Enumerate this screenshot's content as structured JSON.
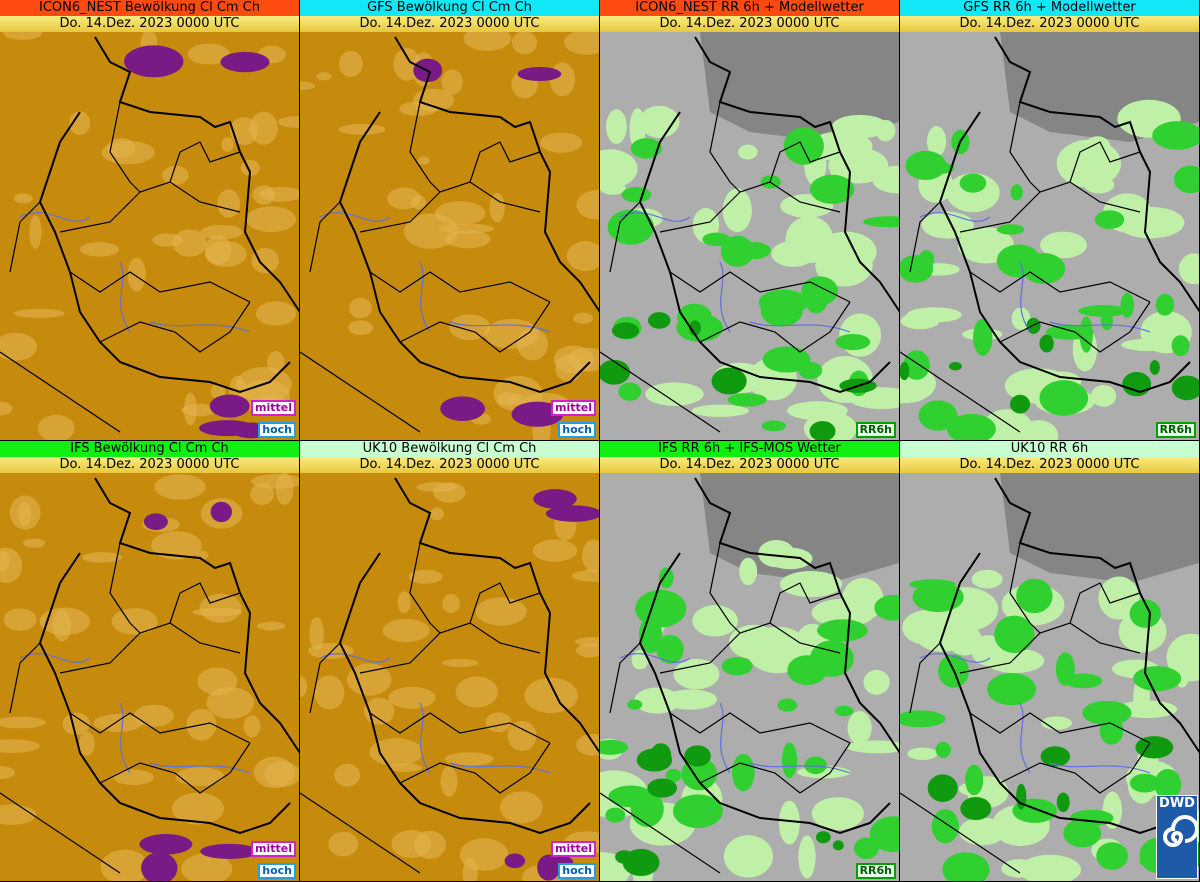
{
  "panels": [
    {
      "title": "ICON6_NEST Bewölkung Cl Cm Ch",
      "date": "Do. 14.Dez. 2023 0000 UTC",
      "tags": [
        "mittel",
        "hoch"
      ],
      "kind": "cloud",
      "head": "red"
    },
    {
      "title": "GFS Bewölkung Cl Cm Ch",
      "date": "Do. 14.Dez. 2023 0000 UTC",
      "tags": [
        "mittel",
        "hoch"
      ],
      "kind": "cloud",
      "head": "cyan"
    },
    {
      "title": "ICON6_NEST RR 6h + Modellwetter",
      "date": "Do. 14.Dez. 2023 0000 UTC",
      "tags": [
        "RR6h"
      ],
      "kind": "rain",
      "head": "red"
    },
    {
      "title": "GFS RR 6h + Modellwetter",
      "date": "Do. 14.Dez. 2023 0000 UTC",
      "tags": [
        "RR6h"
      ],
      "kind": "rain",
      "head": "cyan"
    },
    {
      "title": "IFS Bewölkung Cl Cm Ch",
      "date": "Do. 14.Dez. 2023 0000 UTC",
      "tags": [
        "mittel",
        "hoch"
      ],
      "kind": "cloud",
      "head": "green"
    },
    {
      "title": "UK10 Bewölkung Cl Cm Ch",
      "date": "Do. 14.Dez. 2023 0000 UTC",
      "tags": [
        "mittel",
        "hoch"
      ],
      "kind": "cloud",
      "head": "pale"
    },
    {
      "title": "IFS RR 6h + IFS-MOS Wetter",
      "date": "Do. 14.Dez. 2023 0000 UTC",
      "tags": [
        "RR6h"
      ],
      "kind": "rain",
      "head": "green"
    },
    {
      "title": "UK10 RR 6h",
      "date": "Do. 14.Dez. 2023 0000 UTC",
      "tags": [],
      "kind": "rain",
      "head": "pale"
    }
  ],
  "logo": "DWD"
}
